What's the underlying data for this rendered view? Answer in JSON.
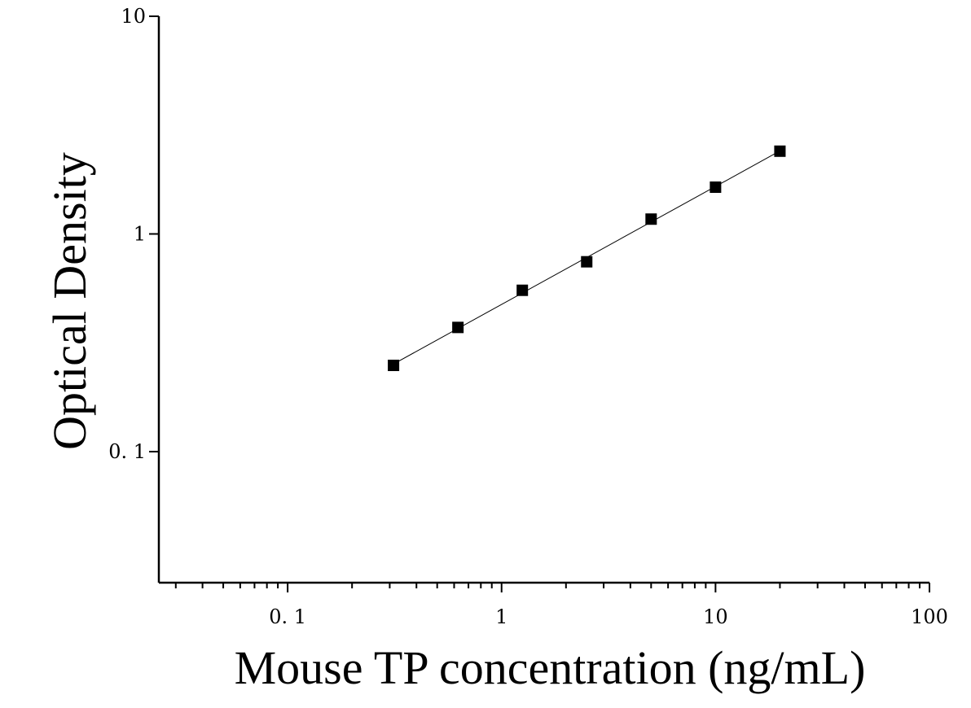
{
  "chart_data": {
    "type": "scatter",
    "title": "",
    "xlabel": "Mouse TP concentration (ng/mL)",
    "ylabel": "Optical Density",
    "xscale": "log",
    "yscale": "log",
    "xlim": [
      0.025,
      100
    ],
    "ylim": [
      0.025,
      10
    ],
    "grid": false,
    "legend": "none",
    "x_ticks": [
      0.1,
      1,
      10,
      100
    ],
    "x_tick_labels": [
      "0. 1",
      "1",
      "10",
      "100"
    ],
    "y_ticks": [
      0.1,
      1,
      10
    ],
    "y_tick_labels": [
      "0. 1",
      "1",
      "10"
    ],
    "series": [
      {
        "marker": "square",
        "color": "#000000",
        "fit_line": true,
        "x": [
          0.3125,
          0.625,
          1.25,
          2.5,
          5,
          10,
          20
        ],
        "y": [
          0.249,
          0.372,
          0.551,
          0.745,
          1.17,
          1.64,
          2.4
        ]
      }
    ]
  }
}
